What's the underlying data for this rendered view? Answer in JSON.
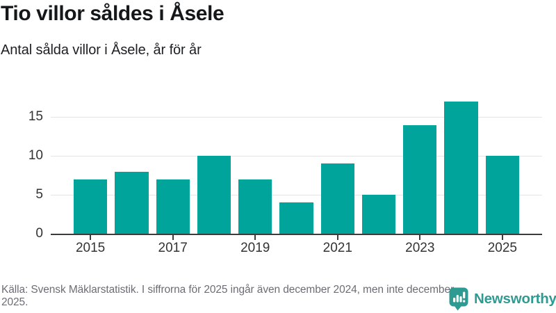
{
  "header": {
    "title": "Tio villor såldes i Åsele",
    "subtitle": "Antal sålda villor i Åsele, år för år"
  },
  "chart_data": {
    "type": "bar",
    "title": "Tio villor såldes i Åsele",
    "subtitle": "Antal sålda villor i Åsele, år för år",
    "categories": [
      "2015",
      "2016",
      "2017",
      "2018",
      "2019",
      "2020",
      "2021",
      "2022",
      "2023",
      "2024",
      "2025"
    ],
    "values": [
      7,
      8,
      7,
      10,
      7,
      4,
      9,
      5,
      14,
      17,
      10
    ],
    "xlabel": "",
    "ylabel": "",
    "ylim": [
      0,
      17.6
    ],
    "ytick_values": [
      0,
      5,
      10,
      15
    ],
    "gridline_values": [
      5,
      10,
      15
    ],
    "xtick_labels": [
      "2015",
      "2017",
      "2019",
      "2021",
      "2023",
      "2025"
    ],
    "grid": "horizontal",
    "legend_position": "none",
    "colors": {
      "bar": "#00a49b",
      "grid": "#e4e4e4",
      "axis": "#3b3b3b",
      "tick_label": "#333333"
    }
  },
  "footer": {
    "source": "Källa: Svensk Mäklarstatistik. I siffrorna för 2025 ingår även december 2024, men inte december 2025."
  },
  "logo": {
    "name": "Newsworthy",
    "color": "#2e9b93"
  }
}
